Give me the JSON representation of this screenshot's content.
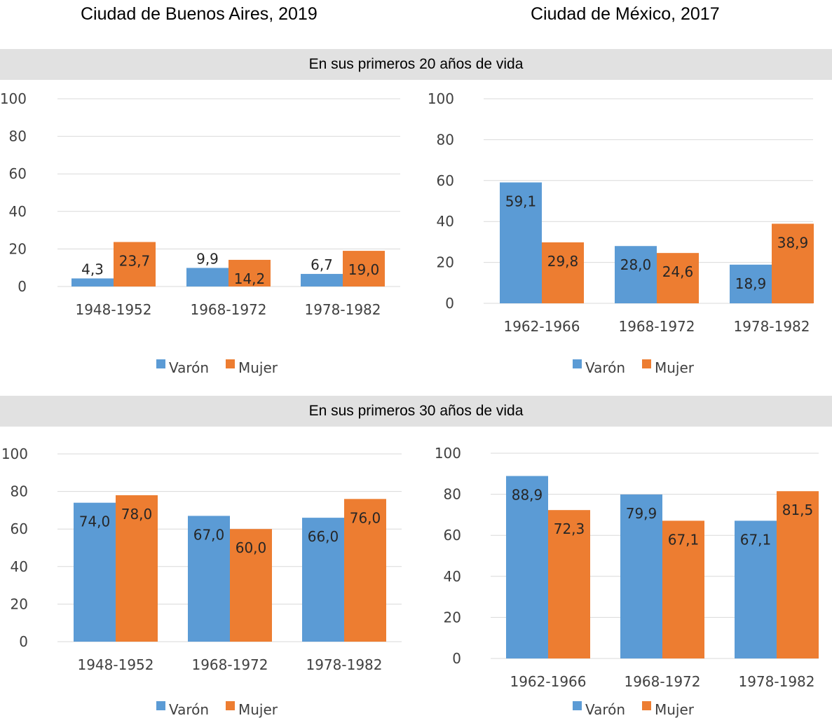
{
  "headers": {
    "left_city": "Ciudad de Buenos Aires, 2019",
    "right_city": "Ciudad de México, 2017",
    "band_20": "En sus primeros 20 años de vida",
    "band_30": "En sus primeros 30 años de vida"
  },
  "colors": {
    "varon": "#5b9bd5",
    "mujer": "#ed7d31",
    "grid": "#d9d9d9",
    "band": "#e1e1e1"
  },
  "chart_data": [
    {
      "type": "bar",
      "title": "Ciudad de Buenos Aires, 2019 — En sus primeros 20 años de vida",
      "categories": [
        "1948-1952",
        "1968-1972",
        "1978-1982"
      ],
      "series": [
        {
          "name": "Varón",
          "values": [
            4.3,
            9.9,
            6.7
          ],
          "labels": [
            "4,3",
            "9,9",
            "6,7"
          ]
        },
        {
          "name": "Mujer",
          "values": [
            23.7,
            14.2,
            19.0
          ],
          "labels": [
            "23,7",
            "14,2",
            "19,0"
          ]
        }
      ],
      "ylim": [
        0,
        100
      ],
      "yticks": [
        "0",
        "20",
        "40",
        "60",
        "80",
        "100"
      ],
      "grid": true,
      "legend": "bottom"
    },
    {
      "type": "bar",
      "title": "Ciudad de México, 2017 — En sus primeros 20 años de vida",
      "categories": [
        "1962-1966",
        "1968-1972",
        "1978-1982"
      ],
      "series": [
        {
          "name": "Varón",
          "values": [
            59.1,
            28.0,
            18.9
          ],
          "labels": [
            "59,1",
            "28,0",
            "18,9"
          ]
        },
        {
          "name": "Mujer",
          "values": [
            29.8,
            24.6,
            38.9
          ],
          "labels": [
            "29,8",
            "24,6",
            "38,9"
          ]
        }
      ],
      "ylim": [
        0,
        100
      ],
      "yticks": [
        "0",
        "20",
        "40",
        "60",
        "80",
        "100"
      ],
      "grid": true,
      "legend": "bottom"
    },
    {
      "type": "bar",
      "title": "Ciudad de Buenos Aires, 2019 — En sus primeros 30 años de vida",
      "categories": [
        "1948-1952",
        "1968-1972",
        "1978-1982"
      ],
      "series": [
        {
          "name": "Varón",
          "values": [
            74.0,
            67.0,
            66.0
          ],
          "labels": [
            "74,0",
            "67,0",
            "66,0"
          ]
        },
        {
          "name": "Mujer",
          "values": [
            78.0,
            60.0,
            76.0
          ],
          "labels": [
            "78,0",
            "60,0",
            "76,0"
          ]
        }
      ],
      "ylim": [
        0,
        100
      ],
      "yticks": [
        "0",
        "20",
        "40",
        "60",
        "80",
        "100"
      ],
      "grid": true,
      "legend": "bottom"
    },
    {
      "type": "bar",
      "title": "Ciudad de México, 2017 — En sus primeros 30 años de vida",
      "categories": [
        "1962-1966",
        "1968-1972",
        "1978-1982"
      ],
      "series": [
        {
          "name": "Varón",
          "values": [
            88.9,
            79.9,
            67.1
          ],
          "labels": [
            "88,9",
            "79,9",
            "67,1"
          ]
        },
        {
          "name": "Mujer",
          "values": [
            72.3,
            67.1,
            81.5
          ],
          "labels": [
            "72,3",
            "67,1",
            "81,5"
          ]
        }
      ],
      "ylim": [
        0,
        100
      ],
      "yticks": [
        "0",
        "20",
        "40",
        "60",
        "80",
        "100"
      ],
      "grid": true,
      "legend": "bottom"
    }
  ]
}
